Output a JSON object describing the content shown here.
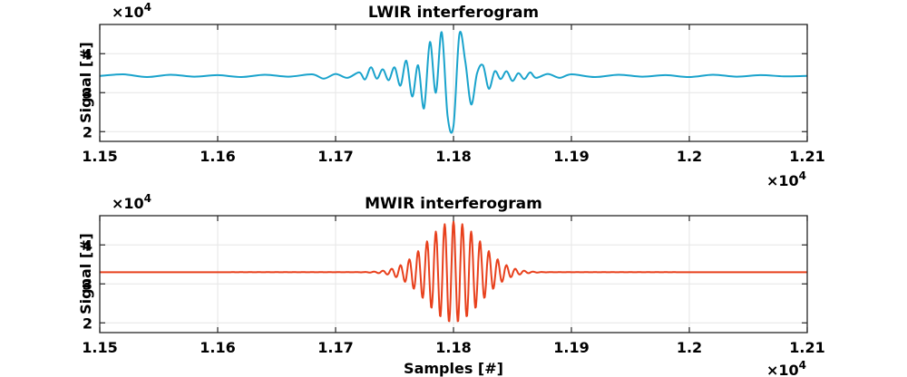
{
  "chart_data": [
    {
      "type": "line",
      "title": "LWIR interferogram",
      "xlabel": "",
      "ylabel": "Signal [#]",
      "xlim": [
        11500,
        12100
      ],
      "ylim": [
        17500,
        47500
      ],
      "x_ticks": [
        11500,
        11600,
        11700,
        11800,
        11900,
        12000,
        12100
      ],
      "x_tick_labels": [
        "1.15",
        "1.16",
        "1.17",
        "1.18",
        "1.19",
        "1.2",
        "1.21"
      ],
      "y_ticks": [
        20000,
        30000,
        40000
      ],
      "y_tick_labels": [
        "2",
        "3",
        "4"
      ],
      "x_exponent": "×10",
      "x_exponent_power": "4",
      "y_exponent": "×10",
      "y_exponent_power": "4",
      "grid": true,
      "series": [
        {
          "color": "#1aa3cc",
          "x": [
            11500,
            11520,
            11540,
            11560,
            11580,
            11600,
            11620,
            11640,
            11660,
            11680,
            11690,
            11700,
            11710,
            11720,
            11725,
            11730,
            11735,
            11740,
            11745,
            11750,
            11755,
            11760,
            11765,
            11770,
            11775,
            11780,
            11785,
            11790,
            11795,
            11800,
            11805,
            11810,
            11815,
            11820,
            11825,
            11830,
            11835,
            11840,
            11845,
            11850,
            11855,
            11860,
            11865,
            11870,
            11880,
            11890,
            11900,
            11920,
            11940,
            11960,
            11980,
            12000,
            12020,
            12040,
            12060,
            12080,
            12100
          ],
          "y": [
            34300,
            34700,
            34000,
            34600,
            34100,
            34500,
            34000,
            34600,
            34100,
            34700,
            33600,
            34800,
            33800,
            35200,
            33400,
            36500,
            33600,
            36000,
            33200,
            36500,
            31800,
            38200,
            29000,
            37000,
            26000,
            43000,
            30000,
            45500,
            24000,
            21500,
            45000,
            38000,
            27000,
            35000,
            37000,
            31000,
            35500,
            33500,
            35500,
            33000,
            35000,
            33500,
            35200,
            33800,
            34800,
            33800,
            34700,
            34000,
            34600,
            34100,
            34500,
            34000,
            34600,
            34100,
            34500,
            34200,
            34300
          ]
        }
      ]
    },
    {
      "type": "line",
      "title": "MWIR interferogram",
      "xlabel": "Samples [#]",
      "ylabel": "Signal [#]",
      "xlim": [
        11500,
        12100
      ],
      "ylim": [
        17500,
        47500
      ],
      "x_ticks": [
        11500,
        11600,
        11700,
        11800,
        11900,
        12000,
        12100
      ],
      "x_tick_labels": [
        "1.15",
        "1.16",
        "1.17",
        "1.18",
        "1.19",
        "1.2",
        "1.21"
      ],
      "y_ticks": [
        20000,
        30000,
        40000
      ],
      "y_tick_labels": [
        "2",
        "3",
        "4"
      ],
      "x_exponent": "×10",
      "x_exponent_power": "4",
      "y_exponent": "×10",
      "y_exponent_power": "4",
      "grid": true,
      "series": [
        {
          "color": "#e8401c",
          "model": "damped_cosine",
          "baseline": 33000,
          "amplitude": 13000,
          "center": 11800,
          "period": 7.5,
          "decay": 32,
          "x_range": [
            11500,
            12100
          ]
        }
      ]
    }
  ]
}
